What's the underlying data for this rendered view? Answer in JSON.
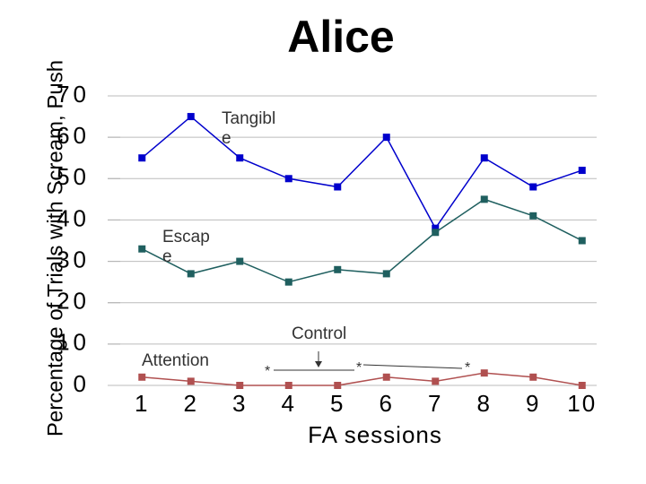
{
  "chart_data": {
    "type": "line",
    "title": "Alice",
    "x_label": "FA sessions",
    "y_label": "Percentage of Trials with Scream, Push",
    "categories": [
      "1",
      "2",
      "3",
      "4",
      "5",
      "6",
      "7",
      "8",
      "9",
      "10"
    ],
    "series": [
      {
        "name": "Tangibl e",
        "color": "#0000cc",
        "values": [
          55,
          65,
          55,
          50,
          48,
          60,
          38,
          55,
          48,
          52
        ]
      },
      {
        "name": "Escap e",
        "color": "#1f5f5f",
        "values": [
          33,
          27,
          30,
          25,
          28,
          27,
          37,
          45,
          41,
          35
        ]
      },
      {
        "name": "Attention",
        "color": "#b05050",
        "values": [
          2,
          1,
          0,
          0,
          0,
          2,
          1,
          3,
          2,
          0
        ]
      }
    ],
    "annotations": [
      "Control",
      "*",
      "*",
      "*"
    ],
    "ylim": [
      0,
      70
    ],
    "yticks": [
      0,
      10,
      20,
      30,
      40,
      50,
      60,
      70
    ],
    "grid": true
  }
}
